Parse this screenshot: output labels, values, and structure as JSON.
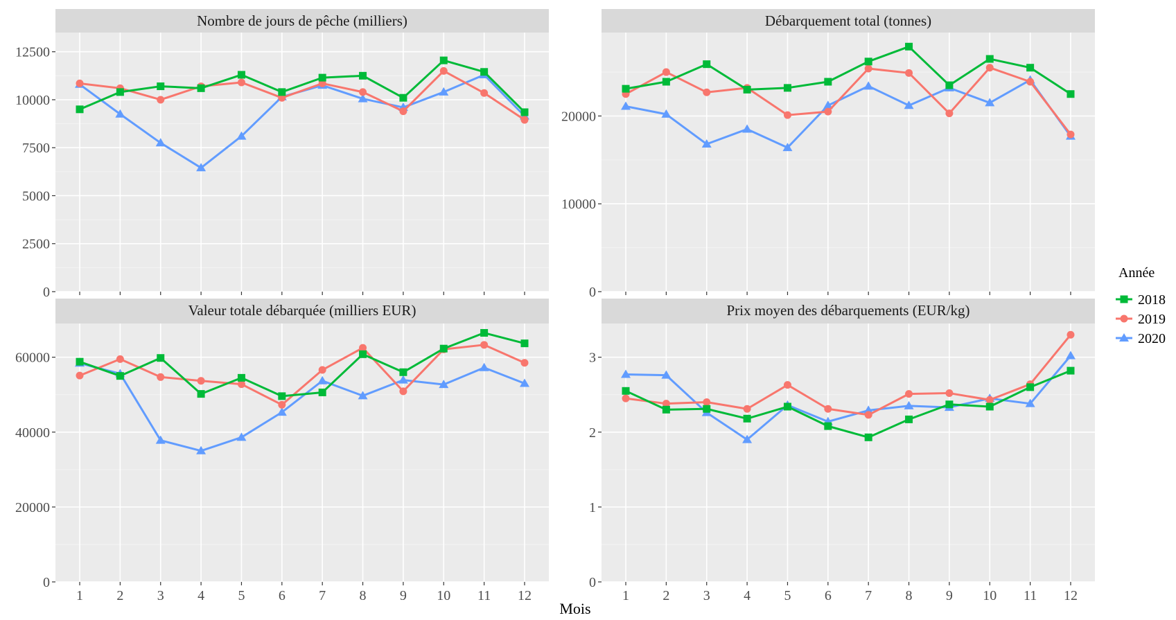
{
  "x_axis_title": "Mois",
  "legend": {
    "title": "Année",
    "items": [
      {
        "label": "2018",
        "color": "#00BA38",
        "shape": "square"
      },
      {
        "label": "2019",
        "color": "#F8766D",
        "shape": "circle"
      },
      {
        "label": "2020",
        "color": "#619CFF",
        "shape": "triangle"
      }
    ]
  },
  "chart_data": [
    {
      "type": "line",
      "title": "Nombre de jours de pêche (milliers)",
      "x": [
        1,
        2,
        3,
        4,
        5,
        6,
        7,
        8,
        9,
        10,
        11,
        12
      ],
      "xlabel": "Mois",
      "ylim": [
        0,
        13500
      ],
      "yticks": [
        0,
        2500,
        5000,
        7500,
        10000,
        12500
      ],
      "series": [
        {
          "name": "2018",
          "values": [
            9500,
            10400,
            10700,
            10600,
            11300,
            10400,
            11150,
            11250,
            10100,
            12050,
            11450,
            9350
          ]
        },
        {
          "name": "2019",
          "values": [
            10850,
            10600,
            10000,
            10700,
            10900,
            10100,
            10850,
            10400,
            9400,
            11500,
            10350,
            8950
          ]
        },
        {
          "name": "2020",
          "values": [
            10800,
            9250,
            7750,
            6450,
            8100,
            10150,
            10750,
            10050,
            9600,
            10400,
            11300,
            9150
          ]
        }
      ]
    },
    {
      "type": "line",
      "title": "Débarquement total (tonnes)",
      "x": [
        1,
        2,
        3,
        4,
        5,
        6,
        7,
        8,
        9,
        10,
        11,
        12
      ],
      "xlabel": "Mois",
      "ylim": [
        0,
        29500
      ],
      "yticks": [
        0,
        10000,
        20000
      ],
      "series": [
        {
          "name": "2018",
          "values": [
            23100,
            23900,
            25900,
            23000,
            23200,
            23900,
            26200,
            27900,
            23500,
            26500,
            25500,
            22500
          ]
        },
        {
          "name": "2019",
          "values": [
            22500,
            25000,
            22700,
            23200,
            20100,
            20500,
            25400,
            24900,
            20300,
            25500,
            23900,
            17900
          ]
        },
        {
          "name": "2020",
          "values": [
            21100,
            20200,
            16800,
            18500,
            16400,
            21200,
            23400,
            21200,
            23200,
            21500,
            24100,
            17700
          ]
        }
      ]
    },
    {
      "type": "line",
      "title": "Valeur totale débarquée (milliers EUR)",
      "x": [
        1,
        2,
        3,
        4,
        5,
        6,
        7,
        8,
        9,
        10,
        11,
        12
      ],
      "xlabel": "Mois",
      "ylim": [
        0,
        69000
      ],
      "yticks": [
        0,
        20000,
        40000,
        60000
      ],
      "series": [
        {
          "name": "2018",
          "values": [
            58800,
            55000,
            59800,
            50200,
            54500,
            49600,
            50600,
            60800,
            56000,
            62300,
            66500,
            63700
          ]
        },
        {
          "name": "2019",
          "values": [
            55100,
            59500,
            54700,
            53700,
            52800,
            47300,
            56600,
            62500,
            50900,
            62100,
            63300,
            58500
          ]
        },
        {
          "name": "2020",
          "values": [
            58400,
            55600,
            37800,
            35000,
            38600,
            45300,
            53700,
            49700,
            53900,
            52700,
            57200,
            53000
          ]
        }
      ]
    },
    {
      "type": "line",
      "title": "Prix moyen des débarquements (EUR/kg)",
      "x": [
        1,
        2,
        3,
        4,
        5,
        6,
        7,
        8,
        9,
        10,
        11,
        12
      ],
      "xlabel": "Mois",
      "ylim": [
        0,
        3.45
      ],
      "yticks": [
        0,
        1,
        2,
        3
      ],
      "series": [
        {
          "name": "2018",
          "values": [
            2.55,
            2.3,
            2.31,
            2.18,
            2.34,
            2.08,
            1.93,
            2.17,
            2.37,
            2.34,
            2.6,
            2.82
          ]
        },
        {
          "name": "2019",
          "values": [
            2.45,
            2.38,
            2.4,
            2.31,
            2.63,
            2.31,
            2.23,
            2.51,
            2.52,
            2.43,
            2.64,
            3.3
          ]
        },
        {
          "name": "2020",
          "values": [
            2.77,
            2.76,
            2.26,
            1.9,
            2.36,
            2.14,
            2.29,
            2.35,
            2.33,
            2.45,
            2.38,
            3.02
          ]
        }
      ]
    }
  ]
}
